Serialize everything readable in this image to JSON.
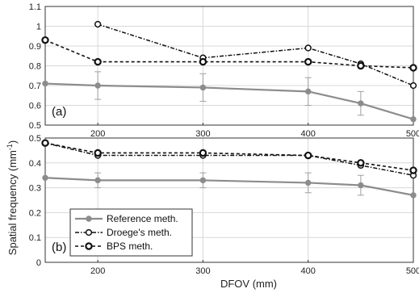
{
  "chart_data": {
    "type": "line",
    "xlabel": "DFOV (mm)",
    "ylabel": "Spatial frequency (mm",
    "ylabel_superscript": "-1",
    "ylabel_close": ")",
    "x_ticks": [
      "200",
      "300",
      "400",
      "500"
    ],
    "x_tick_values": [
      200,
      300,
      400,
      500
    ],
    "xlim": [
      150,
      500
    ],
    "grid": true,
    "legend_position": "bottom-left of panel (b)",
    "legend": [
      "Reference meth.",
      "Droege's meth.",
      "BPS meth."
    ],
    "colors": {
      "reference": "#8c8c8c",
      "droege": "#111111",
      "bps": "#111111",
      "grid": "#d8d8d8"
    },
    "panels": [
      {
        "label": "(a)",
        "ylim": [
          0.5,
          1.1
        ],
        "y_ticks": [
          "0.5",
          "0.6",
          "0.7",
          "0.8",
          "0.9",
          "1",
          "1.1"
        ],
        "y_tick_values": [
          0.5,
          0.6,
          0.7,
          0.8,
          0.9,
          1.0,
          1.1
        ],
        "series": [
          {
            "key": "reference",
            "name": "Reference meth.",
            "x": [
              150,
              200,
              300,
              400,
              450,
              500
            ],
            "y": [
              0.71,
              0.7,
              0.69,
              0.67,
              0.61,
              0.53
            ],
            "err": [
              0.0,
              0.07,
              0.07,
              0.07,
              0.06,
              0.0
            ]
          },
          {
            "key": "droege",
            "name": "Droege's meth.",
            "x": [
              200,
              300,
              400,
              450,
              500
            ],
            "y": [
              1.01,
              0.84,
              0.89,
              0.81,
              0.7
            ],
            "err": []
          },
          {
            "key": "bps",
            "name": "BPS meth.",
            "x": [
              150,
              200,
              300,
              400,
              450,
              500
            ],
            "y": [
              0.93,
              0.82,
              0.82,
              0.82,
              0.8,
              0.79
            ],
            "err": []
          }
        ]
      },
      {
        "label": "(b)",
        "ylim": [
          0,
          0.5
        ],
        "y_ticks": [
          "0",
          "0.1",
          "0.2",
          "0.3",
          "0.4",
          "0.5"
        ],
        "y_tick_values": [
          0,
          0.1,
          0.2,
          0.3,
          0.4,
          0.5
        ],
        "series": [
          {
            "key": "reference",
            "name": "Reference meth.",
            "x": [
              150,
              200,
              300,
              400,
              450,
              500
            ],
            "y": [
              0.34,
              0.33,
              0.33,
              0.32,
              0.31,
              0.27
            ],
            "err": [
              0.0,
              0.03,
              0.03,
              0.04,
              0.04,
              0.0
            ]
          },
          {
            "key": "droege",
            "name": "Droege's meth.",
            "x": [
              150,
              200,
              300,
              400,
              450,
              500
            ],
            "y": [
              0.48,
              0.43,
              0.43,
              0.43,
              0.39,
              0.35
            ],
            "err": []
          },
          {
            "key": "bps",
            "name": "BPS meth.",
            "x": [
              150,
              200,
              300,
              400,
              450,
              500
            ],
            "y": [
              0.48,
              0.44,
              0.44,
              0.43,
              0.4,
              0.37
            ],
            "err": []
          }
        ]
      }
    ]
  }
}
